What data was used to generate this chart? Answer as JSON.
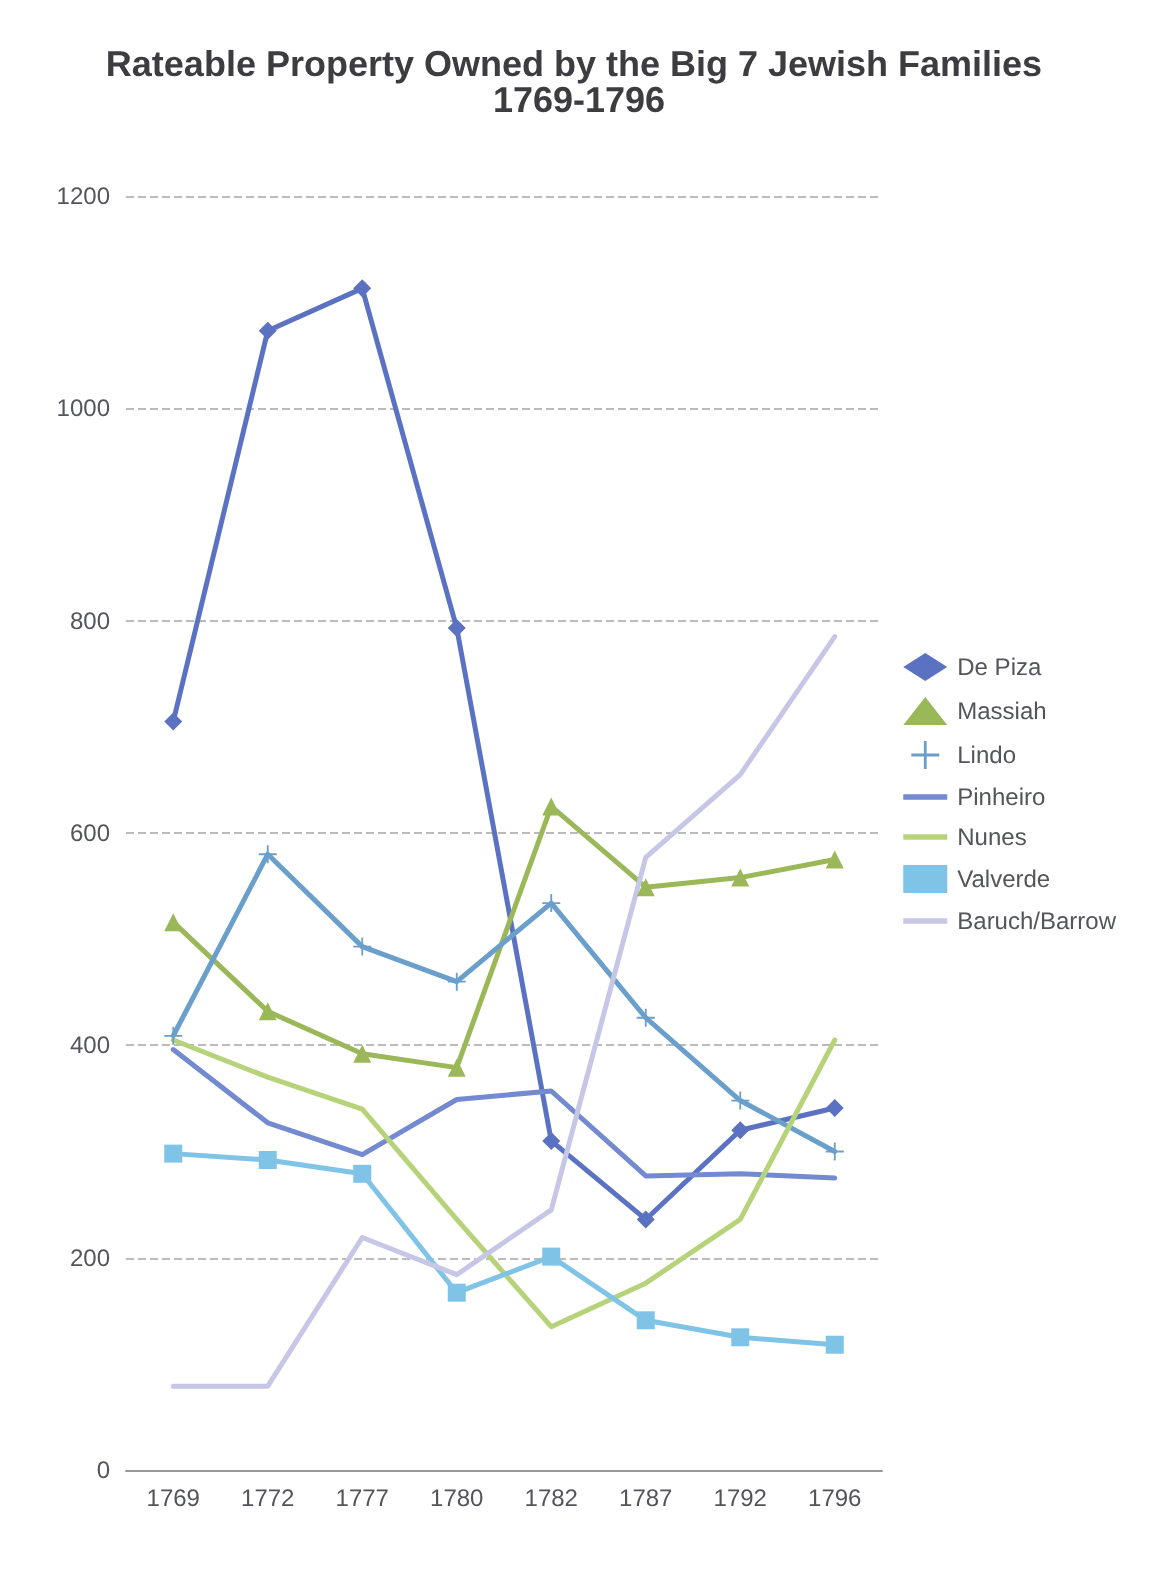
{
  "chart_data": {
    "type": "line",
    "title": "Rateable Property Owned by the Big 7 Jewish Families 1769-1796",
    "categories": [
      "1769",
      "1772",
      "1777",
      "1780",
      "1782",
      "1787",
      "1792",
      "1796"
    ],
    "series": [
      {
        "name": "De Piza",
        "color": "#5b72c2",
        "marker": "diamond",
        "values": [
          705,
          1073,
          1113,
          793,
          310,
          236,
          320,
          341
        ]
      },
      {
        "name": "Massiah",
        "color": "#9bb859",
        "marker": "triangle",
        "values": [
          516,
          432,
          392,
          379,
          625,
          549,
          558,
          575
        ]
      },
      {
        "name": "Lindo",
        "color": "#6a9fcc",
        "marker": "cross",
        "values": [
          409,
          580,
          493,
          460,
          534,
          426,
          348,
          300
        ]
      },
      {
        "name": "Pinheiro",
        "color": "#7389d0",
        "marker": "none",
        "values": [
          396,
          327,
          297,
          349,
          357,
          277,
          279,
          275
        ]
      },
      {
        "name": "Nunes",
        "color": "#b7d37a",
        "marker": "none",
        "values": [
          405,
          370,
          340,
          236,
          135,
          176,
          236,
          405
        ]
      },
      {
        "name": "Valverde",
        "color": "#7fc3e6",
        "marker": "square",
        "values": [
          298,
          292,
          279,
          167,
          201,
          141,
          125,
          118
        ]
      },
      {
        "name": "Baruch/Barrow",
        "color": "#c6c6e6",
        "marker": "none",
        "values": [
          79,
          79,
          219,
          184,
          245,
          577,
          655,
          785
        ]
      }
    ],
    "ylim": [
      0,
      1200
    ],
    "yticks": [
      0,
      200,
      400,
      600,
      800,
      1000,
      1200
    ],
    "grid": "y",
    "legend": "right",
    "line_style": "solid"
  }
}
